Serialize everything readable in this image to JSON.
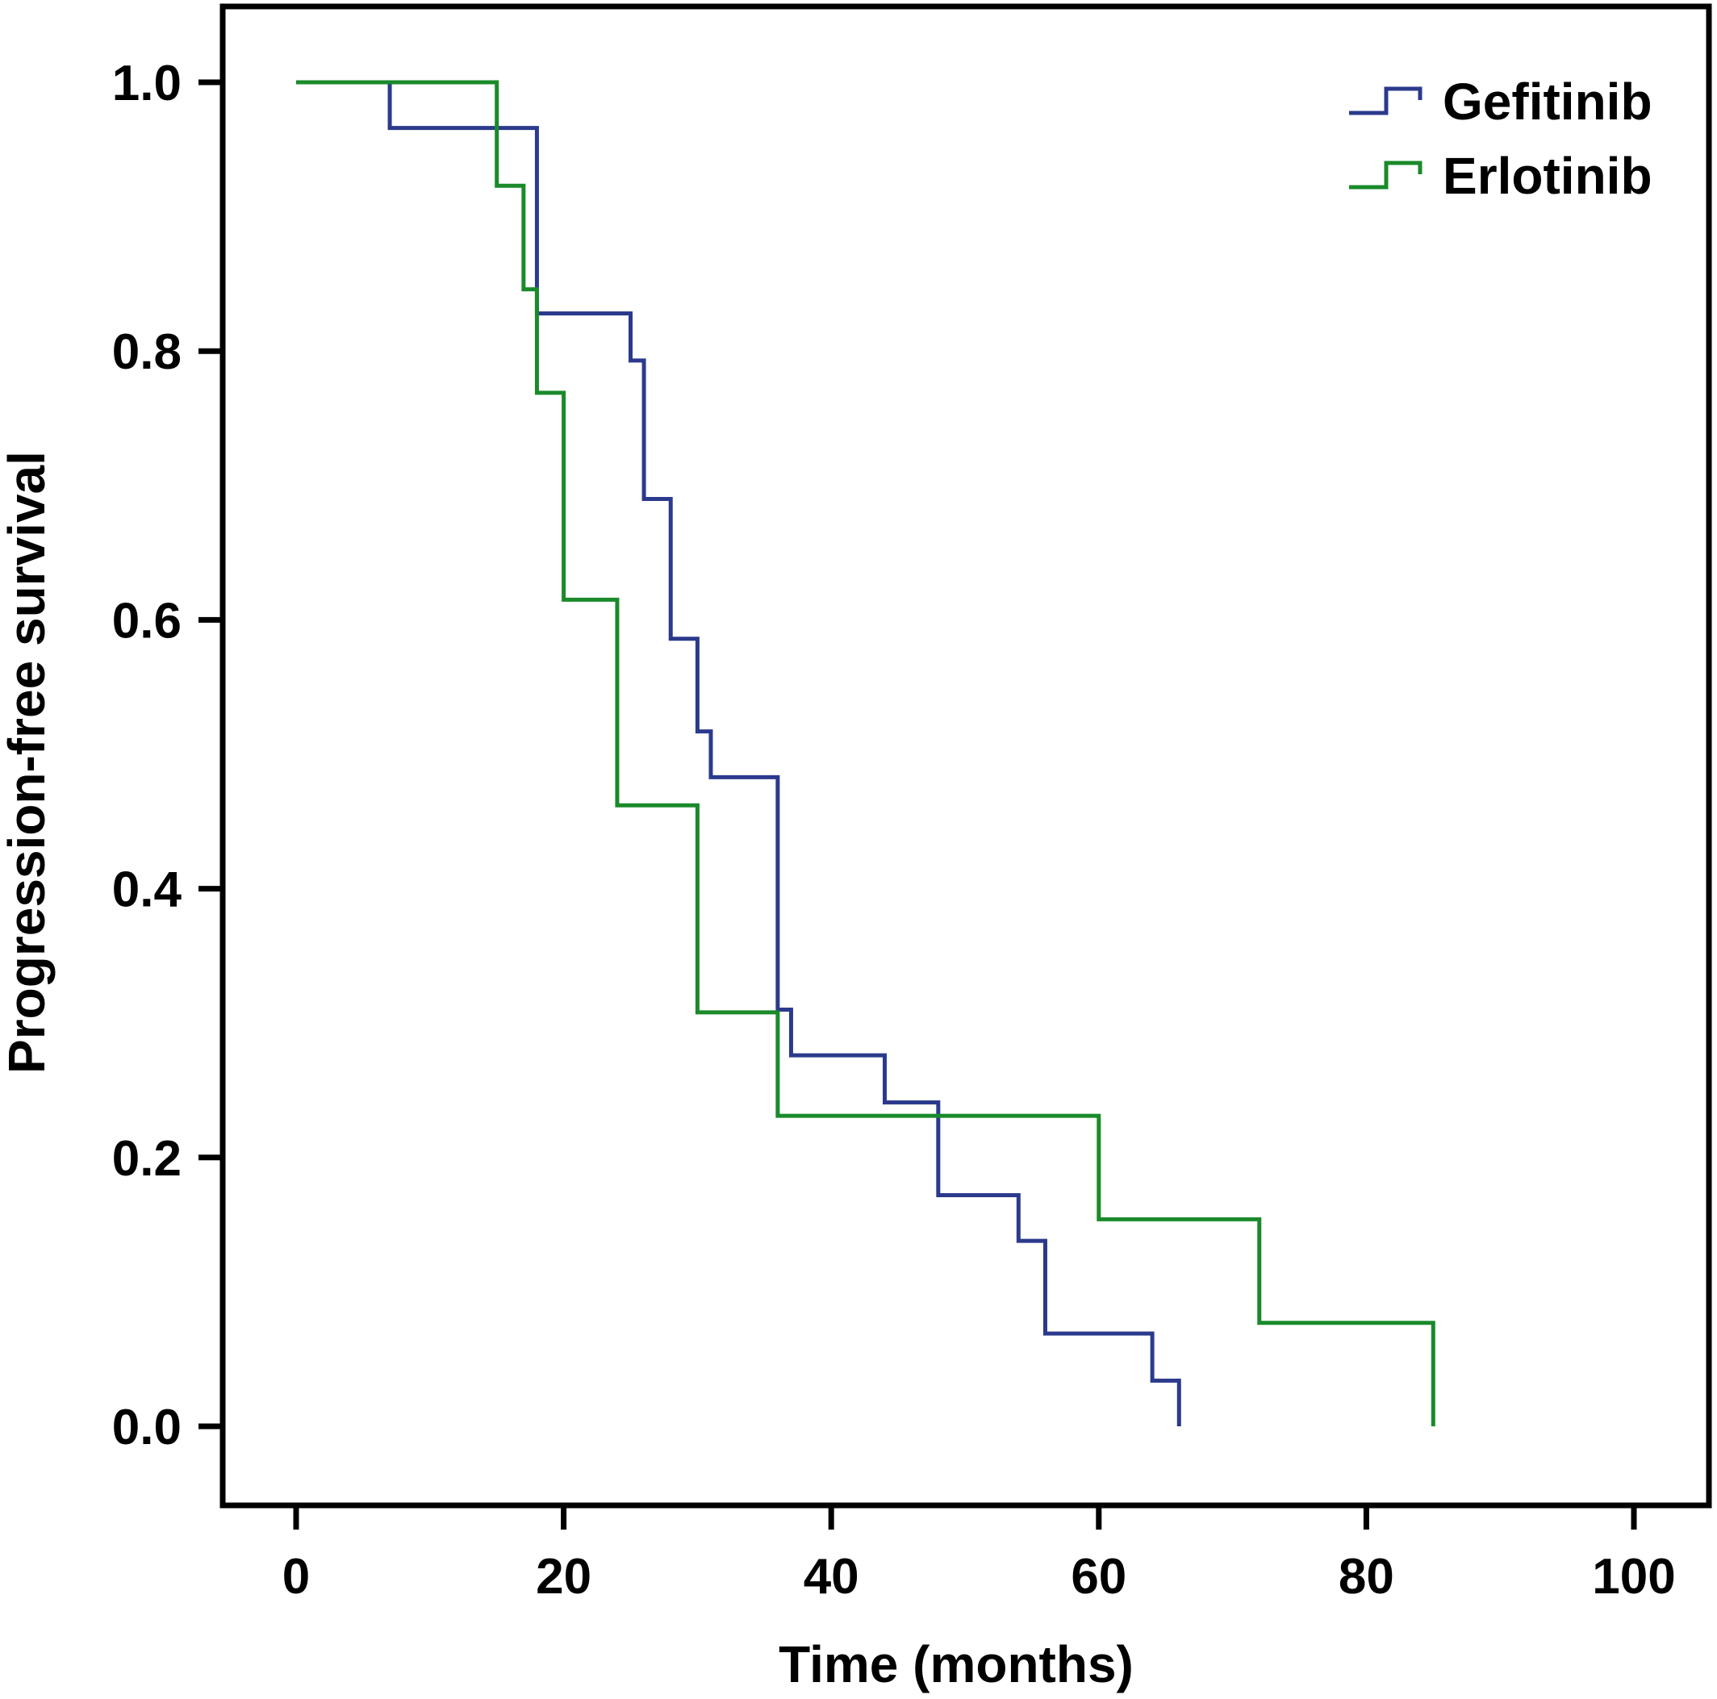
{
  "chart_data": {
    "type": "line",
    "subtype": "kaplan-meier-step",
    "title": "",
    "xlabel": "Time (months)",
    "ylabel": "Progression-free survival",
    "xlim": [
      0,
      100
    ],
    "ylim": [
      0,
      1.0
    ],
    "x_ticks": [
      0,
      20,
      40,
      60,
      80,
      100
    ],
    "y_ticks": [
      0.0,
      0.2,
      0.4,
      0.6,
      0.8,
      1.0
    ],
    "x_tick_labels": [
      "0",
      "20",
      "40",
      "60",
      "80",
      "100"
    ],
    "y_tick_labels": [
      "0.0",
      "0.2",
      "0.4",
      "0.6",
      "0.8",
      "1.0"
    ],
    "grid": false,
    "legend_position": "top-right",
    "series": [
      {
        "name": "Gefitinib",
        "color": "#2b3a8c",
        "steps": [
          [
            0,
            1.0
          ],
          [
            7,
            0.966
          ],
          [
            18,
            0.828
          ],
          [
            25,
            0.793
          ],
          [
            26,
            0.69
          ],
          [
            28,
            0.586
          ],
          [
            30,
            0.517
          ],
          [
            31,
            0.483
          ],
          [
            36,
            0.31
          ],
          [
            37,
            0.276
          ],
          [
            44,
            0.241
          ],
          [
            48,
            0.172
          ],
          [
            54,
            0.138
          ],
          [
            56,
            0.069
          ],
          [
            64,
            0.034
          ],
          [
            66,
            0.0
          ]
        ]
      },
      {
        "name": "Erlotinib",
        "color": "#1a8a2a",
        "steps": [
          [
            0,
            1.0
          ],
          [
            15,
            0.923
          ],
          [
            17,
            0.846
          ],
          [
            18,
            0.769
          ],
          [
            20,
            0.615
          ],
          [
            24,
            0.462
          ],
          [
            30,
            0.308
          ],
          [
            36,
            0.231
          ],
          [
            60,
            0.154
          ],
          [
            72,
            0.077
          ],
          [
            85,
            0.0
          ]
        ]
      }
    ]
  }
}
